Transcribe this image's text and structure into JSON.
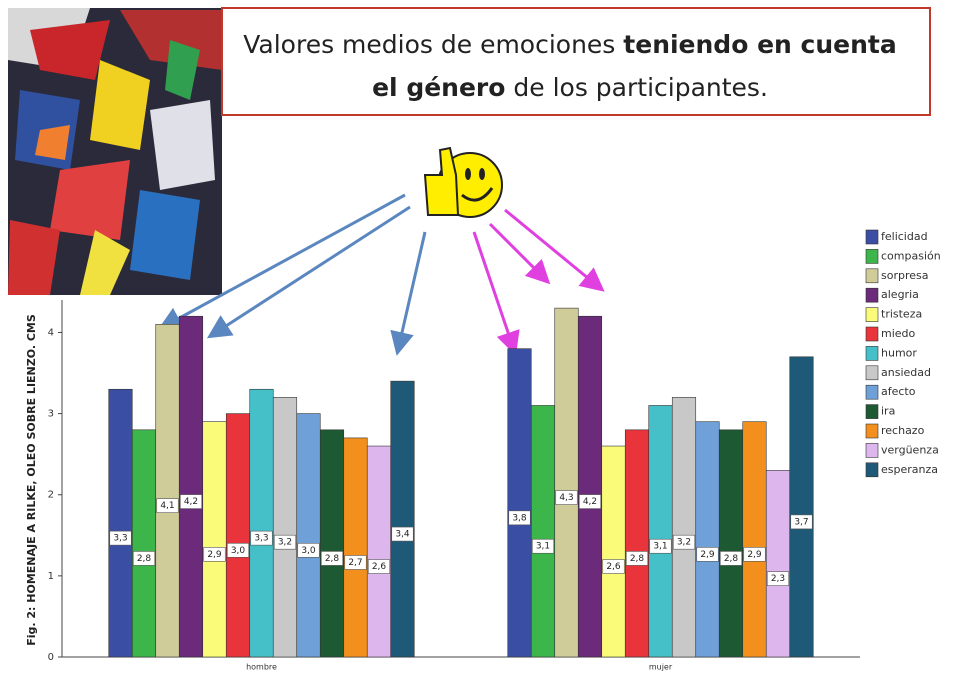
{
  "chart_data": {
    "type": "bar",
    "title_lines": [
      [
        "Valores medios de emociones ",
        "teniendo en cuenta"
      ],
      [
        "el género",
        " de los participantes."
      ]
    ],
    "caption": "Fig. 2: HOMENAJE A RILKE, OLEO SOBRE LIENZO. CMS",
    "categories": [
      "hombre",
      "mujer"
    ],
    "ylim": [
      0,
      4.4
    ],
    "yticks": [
      0,
      1,
      2,
      3,
      4
    ],
    "series": [
      {
        "name": "felicidad",
        "color": "#3a4fa3",
        "values": [
          3.3,
          3.8
        ],
        "value_labels": [
          "3,3",
          "3,8"
        ]
      },
      {
        "name": "compasión",
        "color": "#3cb54a",
        "values": [
          2.8,
          3.1
        ],
        "value_labels": [
          "2,8",
          "3,1"
        ]
      },
      {
        "name": "sorpresa",
        "color": "#cfcc99",
        "values": [
          4.1,
          4.3
        ],
        "value_labels": [
          "4,1",
          "4,3"
        ]
      },
      {
        "name": "alegria",
        "color": "#6b2a7a",
        "values": [
          4.2,
          4.2
        ],
        "value_labels": [
          "4,2",
          "4,2"
        ]
      },
      {
        "name": "tristeza",
        "color": "#fbfb7a",
        "values": [
          2.9,
          2.6
        ],
        "value_labels": [
          "2,9",
          "2,6"
        ]
      },
      {
        "name": "miedo",
        "color": "#e8343a",
        "values": [
          3.0,
          2.8
        ],
        "value_labels": [
          "3,0",
          "2,8"
        ]
      },
      {
        "name": "humor",
        "color": "#45c0c8",
        "values": [
          3.3,
          3.1
        ],
        "value_labels": [
          "3,3",
          "3,1"
        ]
      },
      {
        "name": "ansiedad",
        "color": "#c8c8c8",
        "values": [
          3.2,
          3.2
        ],
        "value_labels": [
          "3,2",
          "3,2"
        ]
      },
      {
        "name": "afecto",
        "color": "#6fa0d8",
        "values": [
          3.0,
          2.9
        ],
        "value_labels": [
          "3,0",
          "2,9"
        ]
      },
      {
        "name": "ira",
        "color": "#1d5a34",
        "values": [
          2.8,
          2.8
        ],
        "value_labels": [
          "2,8",
          "2,8"
        ]
      },
      {
        "name": "rechazo",
        "color": "#f3901d",
        "values": [
          2.7,
          2.9
        ],
        "value_labels": [
          "2,7",
          "2,9"
        ]
      },
      {
        "name": "vergüenza",
        "color": "#ddb6ee",
        "values": [
          2.6,
          2.3
        ],
        "value_labels": [
          "2,6",
          "2,3"
        ]
      },
      {
        "name": "esperanza",
        "color": "#1e5a78",
        "values": [
          3.4,
          3.7
        ],
        "value_labels": [
          "3,4",
          "3,7"
        ]
      }
    ]
  }
}
